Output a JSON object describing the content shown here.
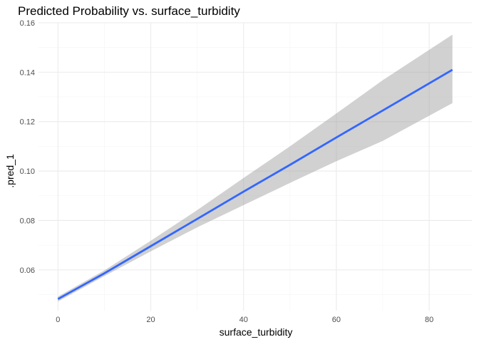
{
  "chart_data": {
    "type": "line",
    "title": "Predicted Probability vs. surface_turbidity",
    "xlabel": "surface_turbidity",
    "ylabel": ".pred_1",
    "xlim": [
      -4.2,
      89.2
    ],
    "ylim": [
      0.0435,
      0.16
    ],
    "xticks": [
      0,
      20,
      40,
      60,
      80
    ],
    "yticks": [
      0.06,
      0.08,
      0.1,
      0.12,
      0.14,
      0.16
    ],
    "x_tick_labels": [
      "0",
      "20",
      "40",
      "60",
      "80"
    ],
    "y_tick_labels": [
      "0.06",
      "0.08",
      "0.10",
      "0.12",
      "0.14",
      "0.16"
    ],
    "grid": true,
    "series": [
      {
        "x": [
          0,
          10,
          20,
          30,
          40,
          50,
          60,
          70,
          85
        ],
        "y": [
          0.0482,
          0.0586,
          0.0696,
          0.0806,
          0.0917,
          0.1025,
          0.1136,
          0.1245,
          0.141
        ],
        "lower": [
          0.0472,
          0.0575,
          0.0675,
          0.0772,
          0.0862,
          0.0952,
          0.104,
          0.1122,
          0.1275
        ],
        "upper": [
          0.0492,
          0.0598,
          0.0718,
          0.0842,
          0.0972,
          0.11,
          0.1233,
          0.1368,
          0.1552
        ]
      }
    ],
    "colors": {
      "line": "#3366ff",
      "ribbon": "#999999",
      "grid": "#ebebeb"
    }
  }
}
